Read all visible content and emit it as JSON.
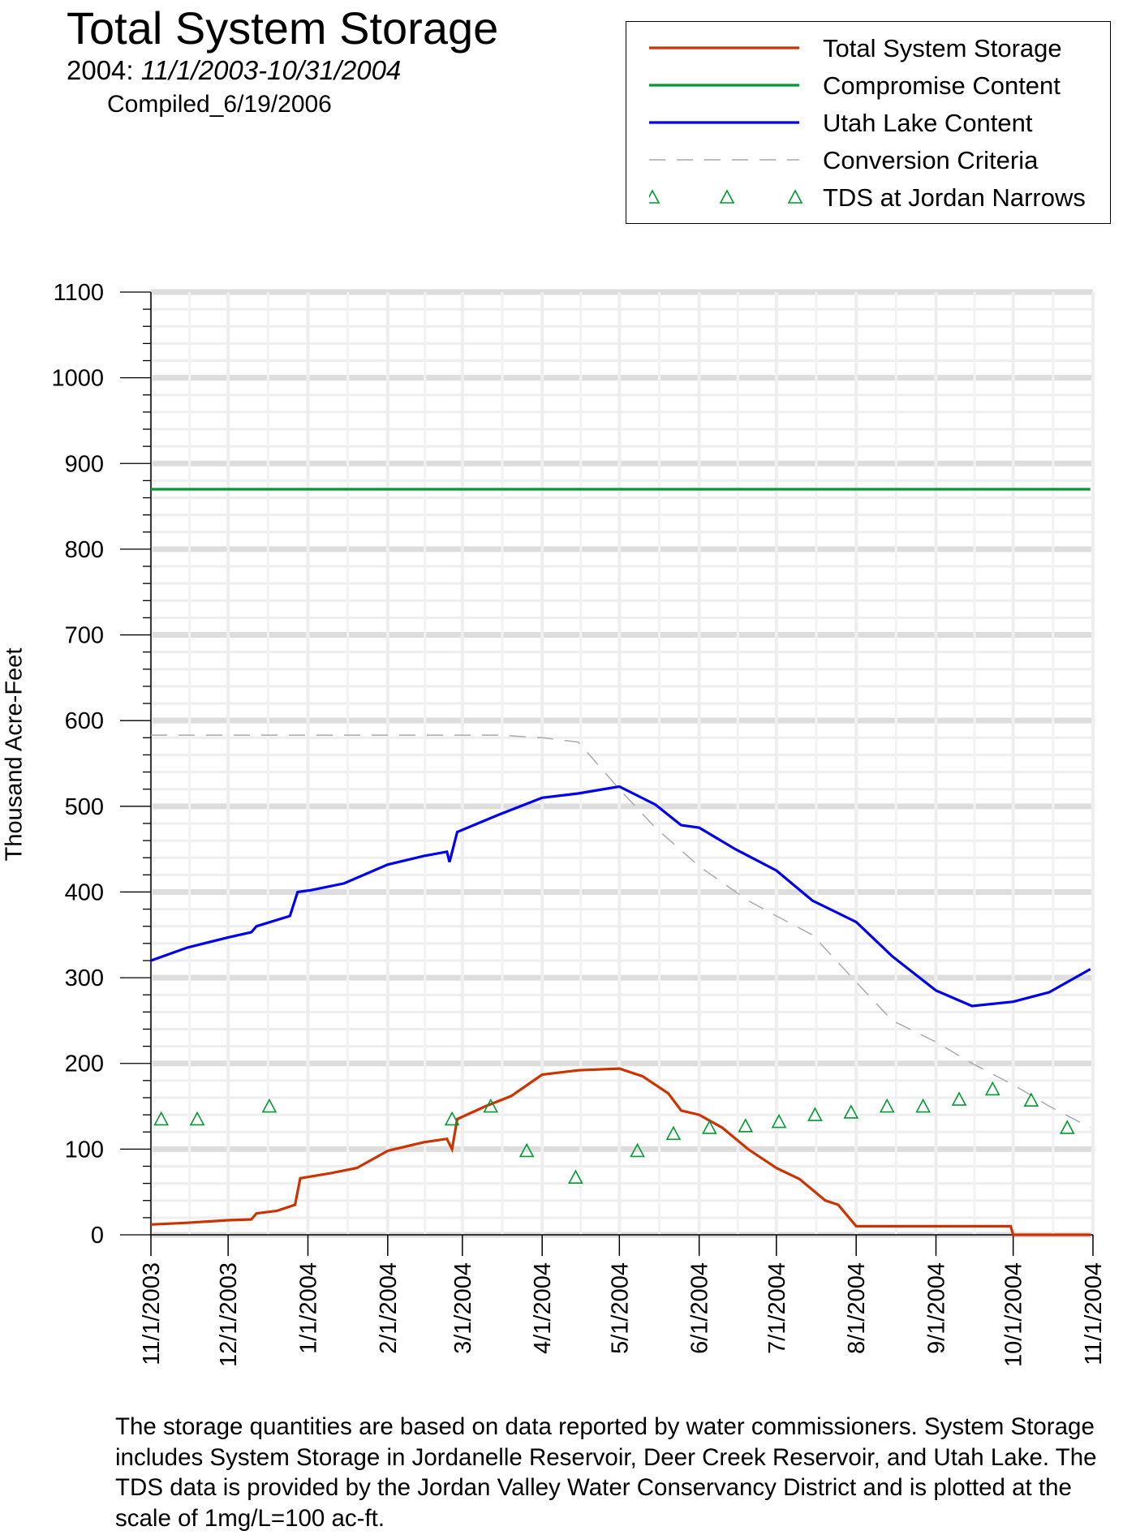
{
  "header": {
    "title": "Total System Storage",
    "subtitle_prefix": "2004:",
    "subtitle_range": "11/1/2003-10/31/2004",
    "compiled": "Compiled_6/19/2006"
  },
  "footnote": "The storage quantities are based on data reported by water commissioners.  System Storage includes System Storage in Jordanelle Reservoir, Deer Creek Reservoir, and Utah Lake.  The TDS data is provided by the Jordan Valley Water Conservancy District and is plotted at the scale of 1mg/L=100 ac-ft.",
  "chart_data": {
    "type": "line",
    "title": "Total System Storage",
    "subtitle": "2004: 11/1/2003-10/31/2004",
    "xlabel": "",
    "ylabel": "Thousand Acre-Feet",
    "ylim": [
      0,
      1100
    ],
    "xlim": [
      "11/1/2003",
      "11/1/2004"
    ],
    "yticks": [
      0,
      100,
      200,
      300,
      400,
      500,
      600,
      700,
      800,
      900,
      1000,
      1100
    ],
    "xticks": [
      "11/1/2003",
      "12/1/2003",
      "1/1/2004",
      "2/1/2004",
      "3/1/2004",
      "4/1/2004",
      "5/1/2004",
      "6/1/2004",
      "7/1/2004",
      "8/1/2004",
      "9/1/2004",
      "10/1/2004",
      "11/1/2004"
    ],
    "grid": true,
    "legend_position": "top-right",
    "series": [
      {
        "name": "Total System Storage",
        "color": "#cc3300",
        "style": "solid",
        "points": [
          [
            "11/1/2003",
            12
          ],
          [
            "11/15/2003",
            14
          ],
          [
            "12/1/2003",
            17
          ],
          [
            "12/10/2003",
            18
          ],
          [
            "12/12/2003",
            25
          ],
          [
            "12/20/2003",
            28
          ],
          [
            "12/27/2003",
            35
          ],
          [
            "12/29/2003",
            66
          ],
          [
            "1/2/2004",
            68
          ],
          [
            "1/10/2004",
            72
          ],
          [
            "1/20/2004",
            78
          ],
          [
            "2/1/2004",
            98
          ],
          [
            "2/15/2004",
            108
          ],
          [
            "2/24/2004",
            112
          ],
          [
            "2/26/2004",
            100
          ],
          [
            "2/28/2004",
            135
          ],
          [
            "3/10/2004",
            150
          ],
          [
            "3/20/2004",
            162
          ],
          [
            "4/1/2004",
            187
          ],
          [
            "4/15/2004",
            192
          ],
          [
            "5/1/2004",
            194
          ],
          [
            "5/10/2004",
            185
          ],
          [
            "5/20/2004",
            165
          ],
          [
            "5/25/2004",
            145
          ],
          [
            "6/1/2004",
            140
          ],
          [
            "6/10/2004",
            125
          ],
          [
            "6/20/2004",
            100
          ],
          [
            "7/1/2004",
            78
          ],
          [
            "7/10/2004",
            65
          ],
          [
            "7/20/2004",
            40
          ],
          [
            "7/25/2004",
            35
          ],
          [
            "8/1/2004",
            10
          ],
          [
            "9/30/2004",
            10
          ],
          [
            "10/1/2004",
            0
          ],
          [
            "10/31/2004",
            0
          ]
        ]
      },
      {
        "name": "Compromise Content",
        "color": "#009933",
        "style": "solid",
        "points": [
          [
            "11/1/2003",
            870
          ],
          [
            "10/31/2004",
            870
          ]
        ]
      },
      {
        "name": "Utah Lake Content",
        "color": "#0000ee",
        "style": "solid",
        "points": [
          [
            "11/1/2003",
            320
          ],
          [
            "11/15/2003",
            335
          ],
          [
            "12/1/2003",
            347
          ],
          [
            "12/10/2003",
            353
          ],
          [
            "12/12/2003",
            360
          ],
          [
            "12/25/2003",
            372
          ],
          [
            "12/28/2003",
            400
          ],
          [
            "1/2/2004",
            402
          ],
          [
            "1/15/2004",
            410
          ],
          [
            "2/1/2004",
            432
          ],
          [
            "2/15/2004",
            442
          ],
          [
            "2/24/2004",
            447
          ],
          [
            "2/25/2004",
            435
          ],
          [
            "2/28/2004",
            470
          ],
          [
            "3/15/2004",
            490
          ],
          [
            "4/1/2004",
            510
          ],
          [
            "4/15/2004",
            515
          ],
          [
            "5/1/2004",
            523
          ],
          [
            "5/15/2004",
            502
          ],
          [
            "5/25/2004",
            478
          ],
          [
            "6/1/2004",
            475
          ],
          [
            "6/15/2004",
            450
          ],
          [
            "7/1/2004",
            425
          ],
          [
            "7/15/2004",
            390
          ],
          [
            "8/1/2004",
            365
          ],
          [
            "8/15/2004",
            325
          ],
          [
            "9/1/2004",
            285
          ],
          [
            "9/15/2004",
            267
          ],
          [
            "10/1/2004",
            272
          ],
          [
            "10/15/2004",
            283
          ],
          [
            "10/31/2004",
            310
          ]
        ]
      },
      {
        "name": "Conversion Criteria",
        "color": "#aaaaaa",
        "style": "dashed",
        "points": [
          [
            "11/1/2003",
            583
          ],
          [
            "3/15/2004",
            583
          ],
          [
            "4/1/2004",
            580
          ],
          [
            "4/15/2004",
            575
          ],
          [
            "5/1/2004",
            520
          ],
          [
            "5/15/2004",
            475
          ],
          [
            "6/1/2004",
            430
          ],
          [
            "6/20/2004",
            390
          ],
          [
            "7/1/2004",
            372
          ],
          [
            "7/15/2004",
            350
          ],
          [
            "8/1/2004",
            295
          ],
          [
            "8/15/2004",
            250
          ],
          [
            "9/1/2004",
            225
          ],
          [
            "9/15/2004",
            200
          ],
          [
            "10/1/2004",
            175
          ],
          [
            "10/15/2004",
            150
          ],
          [
            "10/31/2004",
            125
          ]
        ]
      },
      {
        "name": "TDS at Jordan Narrows",
        "color": "#009933",
        "style": "marker",
        "marker": "triangle",
        "points": [
          [
            "11/5/2003",
            135
          ],
          [
            "11/19/2003",
            135
          ],
          [
            "12/17/2003",
            150
          ],
          [
            "2/26/2004",
            135
          ],
          [
            "3/12/2004",
            150
          ],
          [
            "3/26/2004",
            98
          ],
          [
            "4/14/2004",
            67
          ],
          [
            "5/8/2004",
            98
          ],
          [
            "5/22/2004",
            118
          ],
          [
            "6/5/2004",
            125
          ],
          [
            "6/19/2004",
            127
          ],
          [
            "7/2/2004",
            132
          ],
          [
            "7/16/2004",
            140
          ],
          [
            "7/30/2004",
            143
          ],
          [
            "8/13/2004",
            150
          ],
          [
            "8/27/2004",
            150
          ],
          [
            "9/10/2004",
            158
          ],
          [
            "9/23/2004",
            170
          ],
          [
            "10/8/2004",
            157
          ],
          [
            "10/22/2004",
            125
          ]
        ]
      }
    ]
  }
}
